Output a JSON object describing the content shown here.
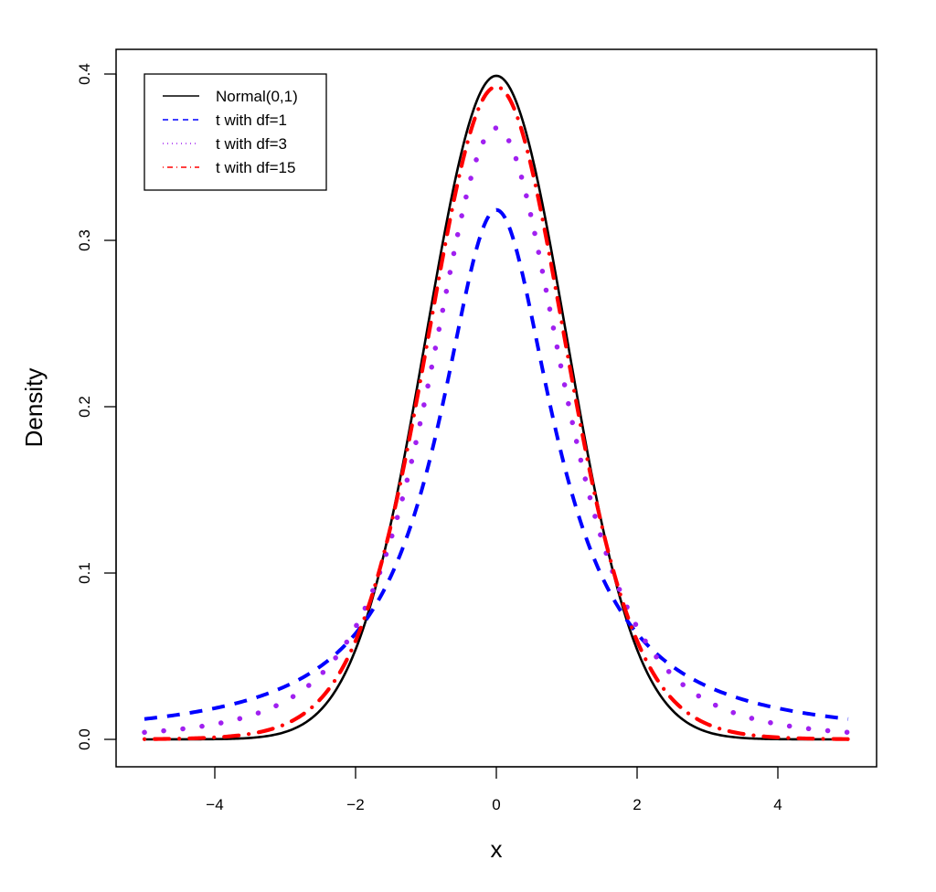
{
  "chart_data": {
    "type": "line",
    "title": "",
    "xlabel": "x",
    "ylabel": "Density",
    "xlim": [
      -5,
      5
    ],
    "ylim": [
      0,
      0.4
    ],
    "x_ticks": [
      -4,
      -2,
      0,
      2,
      4
    ],
    "x_tick_labels": [
      "−4",
      "−2",
      "0",
      "2",
      "4"
    ],
    "y_ticks": [
      0.0,
      0.1,
      0.2,
      0.3,
      0.4
    ],
    "y_tick_labels": [
      "0.0",
      "0.1",
      "0.2",
      "0.3",
      "0.4"
    ],
    "grid": false,
    "legend_position": "top-left",
    "x": [
      -5,
      -4,
      -3,
      -2.5,
      -2,
      -1.5,
      -1,
      -0.5,
      0,
      0.5,
      1,
      1.5,
      2,
      2.5,
      3,
      4,
      5
    ],
    "series": [
      {
        "name": "Normal(0,1)",
        "color": "#000000",
        "linestyle": "solid",
        "distribution": "normal",
        "df": null,
        "values": [
          0.0,
          0.0001,
          0.0044,
          0.0175,
          0.054,
          0.1295,
          0.242,
          0.3521,
          0.3989,
          0.3521,
          0.242,
          0.1295,
          0.054,
          0.0175,
          0.0044,
          0.0001,
          0.0
        ]
      },
      {
        "name": "t with df=1",
        "color": "#0000ff",
        "linestyle": "dashed",
        "distribution": "t",
        "df": 1,
        "values": [
          0.0122,
          0.0187,
          0.0318,
          0.0439,
          0.0637,
          0.0979,
          0.1592,
          0.2546,
          0.3183,
          0.2546,
          0.1592,
          0.0979,
          0.0637,
          0.0439,
          0.0318,
          0.0187,
          0.0122
        ]
      },
      {
        "name": "t with df=3",
        "color": "#a020f0",
        "linestyle": "dotted",
        "distribution": "t",
        "df": 3,
        "values": [
          0.0042,
          0.0092,
          0.023,
          0.0382,
          0.0675,
          0.126,
          0.2067,
          0.3125,
          0.3676,
          0.3125,
          0.2067,
          0.126,
          0.0675,
          0.0382,
          0.023,
          0.0092,
          0.0042
        ]
      },
      {
        "name": "t with df=15",
        "color": "#ff0000",
        "linestyle": "dashdot",
        "distribution": "t",
        "df": 15,
        "values": [
          0.0001,
          0.0009,
          0.0085,
          0.0237,
          0.0589,
          0.1298,
          0.236,
          0.344,
          0.394,
          0.344,
          0.236,
          0.1298,
          0.0589,
          0.0237,
          0.0085,
          0.0009,
          0.0001
        ]
      }
    ]
  },
  "legend": {
    "items": [
      {
        "label": "Normal(0,1)",
        "color": "#000000",
        "dash": ""
      },
      {
        "label": "t with df=1",
        "color": "#0000ff",
        "dash": "6,5"
      },
      {
        "label": "t with df=3",
        "color": "#a020f0",
        "dash": "1,4"
      },
      {
        "label": "t with df=15",
        "color": "#ff0000",
        "dash": "1,4,6,4"
      }
    ]
  },
  "axes": {
    "xlabel": "x",
    "ylabel": "Density",
    "x_tick_labels": [
      "−4",
      "−2",
      "0",
      "2",
      "4"
    ],
    "y_tick_labels": [
      "0.0",
      "0.1",
      "0.2",
      "0.3",
      "0.4"
    ]
  }
}
